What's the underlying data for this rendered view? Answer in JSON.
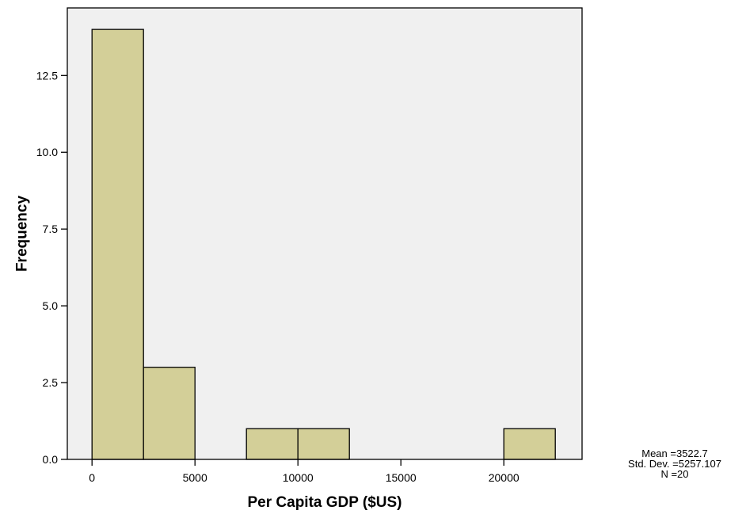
{
  "chart_data": {
    "type": "bar",
    "title": "",
    "xlabel": "Per Capita GDP ($US)",
    "ylabel": "Frequency",
    "bin_width": 2500,
    "bins": [
      {
        "x0": 0,
        "x1": 2500,
        "count": 14
      },
      {
        "x0": 2500,
        "x1": 5000,
        "count": 3
      },
      {
        "x0": 7500,
        "x1": 10000,
        "count": 1
      },
      {
        "x0": 10000,
        "x1": 12500,
        "count": 1
      },
      {
        "x0": 20000,
        "x1": 22500,
        "count": 1
      }
    ],
    "xlim": [
      -1200,
      23800
    ],
    "ylim": [
      0,
      14.7
    ],
    "xticks": [
      0,
      5000,
      10000,
      15000,
      20000
    ],
    "xtick_labels": [
      "0",
      "5000",
      "10000",
      "15000",
      "20000"
    ],
    "yticks": [
      0,
      2.5,
      5,
      7.5,
      10,
      12.5
    ],
    "ytick_labels": [
      "0.0",
      "2.5",
      "5.0",
      "7.5",
      "10.0",
      "12.5"
    ],
    "grid": false,
    "legend": "none",
    "colors": {
      "bar_fill": "#d3cf98",
      "bar_stroke": "#000000",
      "plot_background": "#f0f0f0"
    }
  },
  "stats": {
    "mean": "Mean =3522.7",
    "std_dev": "Std. Dev. =5257.107",
    "n": "N =20"
  }
}
